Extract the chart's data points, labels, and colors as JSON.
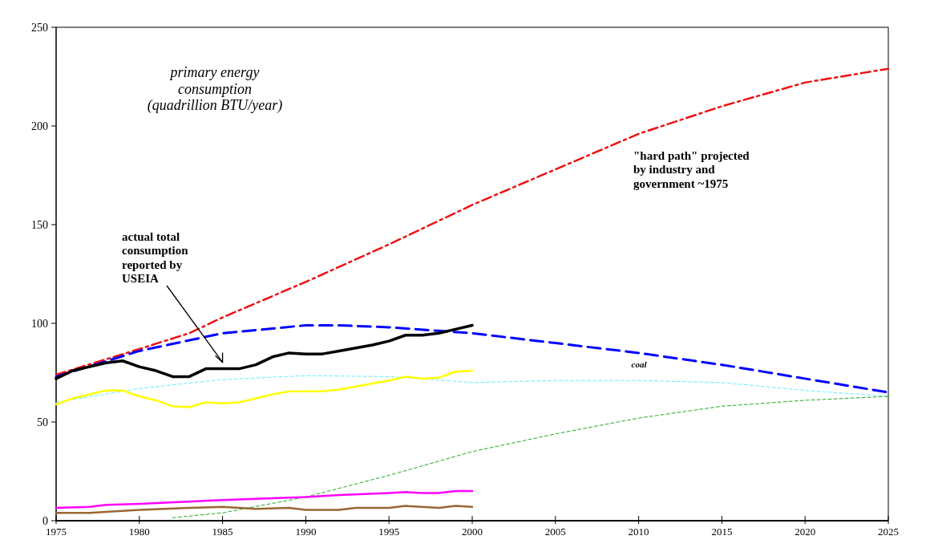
{
  "chart_data": {
    "type": "line",
    "title": "primary energy\nconsumption\n(quadrillion BTU/year)",
    "xlim": [
      1975,
      2025
    ],
    "xticks": [
      1975,
      1980,
      1985,
      1990,
      1995,
      2000,
      2005,
      2010,
      2015,
      2020,
      2025
    ],
    "ylim": [
      0,
      250
    ],
    "yticks": [
      0,
      50,
      100,
      150,
      200,
      250
    ],
    "grid": false,
    "annotations": [
      {
        "text": "actual total\nconsumption\nreported by\nUSEIA",
        "x": 1985,
        "y": 77
      },
      "\"hard path\" projected\nby industry and\ngovernment ~1975",
      "coal"
    ],
    "series": [
      {
        "color": "#ee1111",
        "line_style": "dashed",
        "x": [
          1975,
          1980,
          1983,
          1985,
          1990,
          1995,
          2000,
          2005,
          2010,
          2015,
          2020,
          2025
        ],
        "values": [
          74,
          87,
          95,
          103,
          121,
          140,
          160,
          178,
          196,
          210,
          222,
          229
        ]
      },
      {
        "color": "#0000ff",
        "line_style": "dashed",
        "x": [
          1975,
          1980,
          1985,
          1990,
          1992,
          1995,
          2000,
          2005,
          2010,
          2015,
          2020,
          2025
        ],
        "values": [
          73,
          86,
          95,
          99,
          99,
          98,
          95,
          90,
          85,
          79,
          72,
          65
        ]
      },
      {
        "color": "#66eeff",
        "line_style": "dashed",
        "x": [
          1975,
          1980,
          1985,
          1990,
          1995,
          2000,
          2005,
          2010,
          2015,
          2020,
          2025
        ],
        "values": [
          60,
          67,
          71.5,
          73.5,
          73,
          70,
          71,
          71,
          70,
          66,
          63
        ]
      },
      {
        "color": "#22aa22",
        "line_style": "dashed",
        "x": [
          1982,
          1985,
          1990,
          1995,
          2000,
          2005,
          2010,
          2015,
          2020,
          2025
        ],
        "values": [
          1.5,
          4,
          12,
          23,
          35,
          44,
          52,
          58,
          61,
          63
        ]
      },
      {
        "color": "#000000",
        "line_style": "solid",
        "x": [
          1975,
          1976,
          1977,
          1978,
          1979,
          1980,
          1981,
          1982,
          1983,
          1984,
          1985,
          1986,
          1987,
          1988,
          1989,
          1990,
          1991,
          1992,
          1993,
          1994,
          1995,
          1996,
          1997,
          1998,
          1999,
          2000
        ],
        "values": [
          72,
          76,
          78,
          80,
          81,
          78,
          76,
          73,
          73,
          77,
          77,
          77,
          79,
          83,
          85,
          84.5,
          84.5,
          86,
          87.5,
          89,
          91,
          94,
          94,
          95,
          97,
          99
        ]
      },
      {
        "color": "#ffff00",
        "line_style": "solid",
        "x": [
          1975,
          1976,
          1977,
          1978,
          1979,
          1980,
          1981,
          1982,
          1983,
          1984,
          1985,
          1986,
          1987,
          1988,
          1989,
          1990,
          1991,
          1992,
          1993,
          1994,
          1995,
          1996,
          1997,
          1998,
          1999,
          2000
        ],
        "values": [
          59,
          62,
          64,
          66,
          66,
          63,
          61,
          58,
          57.5,
          60,
          59.5,
          60,
          62,
          64,
          65.5,
          65.5,
          65.5,
          66.5,
          68,
          69.5,
          71,
          73,
          72,
          72.5,
          75.5,
          76
        ]
      },
      {
        "color": "#ff00ff",
        "line_style": "solid",
        "x": [
          1975,
          1977,
          1978,
          1980,
          1985,
          1990,
          1992,
          1995,
          1996,
          1997,
          1998,
          1999,
          2000
        ],
        "values": [
          6.5,
          7,
          8,
          8.5,
          10.5,
          12,
          13,
          14,
          14.5,
          14,
          14,
          15,
          15
        ]
      },
      {
        "color": "#996633",
        "line_style": "solid",
        "x": [
          1975,
          1977,
          1980,
          1983,
          1985,
          1987,
          1989,
          1990,
          1992,
          1993,
          1995,
          1996,
          1998,
          1999,
          2000
        ],
        "values": [
          4,
          4,
          5.5,
          6.5,
          7,
          6,
          6.5,
          5.5,
          5.5,
          6.5,
          6.5,
          7.5,
          6.5,
          7.5,
          7
        ]
      }
    ]
  }
}
